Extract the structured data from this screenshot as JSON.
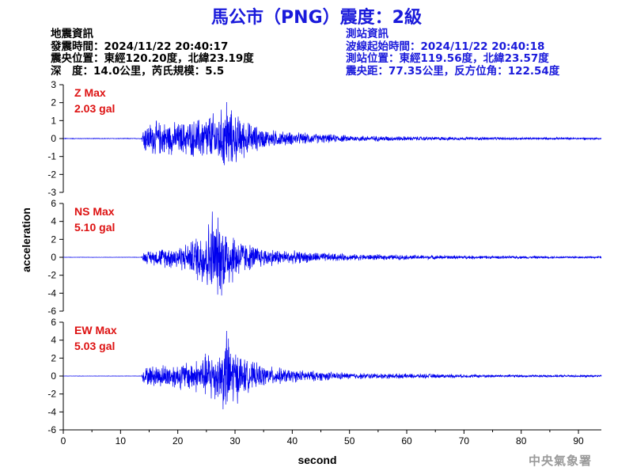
{
  "header": {
    "title": "馬公市（PNG）震度：2級"
  },
  "quake_info": {
    "heading": "地震資訊",
    "origin_time": "發震時間：2024/11/22 20:40:17",
    "epicenter": "震央位置：東經120.20度，北緯23.19度",
    "depth_magnitude": "深　度：14.0公里，芮氏規模：5.5"
  },
  "station_info": {
    "heading": "測站資訊",
    "wave_start": "波線起始時間：2024/11/22 20:40:18",
    "station_location": "測站位置：東經119.56度，北緯23.57度",
    "distance_azimuth": "震央距：77.35公里，反方位角：122.54度"
  },
  "footer": {
    "agency": "中央氣象署"
  },
  "colors": {
    "trace": "#0000ee",
    "label": "#dd1111",
    "title": "#1a1adb"
  },
  "chart_data": {
    "type": "line",
    "xlabel": "second",
    "ylabel": "acceleration",
    "xlim": [
      0,
      94
    ],
    "x_ticks": [
      0,
      10,
      20,
      30,
      40,
      50,
      60,
      70,
      80,
      90
    ],
    "panels": [
      {
        "name": "Z",
        "max_label": "Z Max",
        "max_value": "2.03 gal",
        "peak": 2.03,
        "ylim": [
          -3,
          3
        ],
        "y_ticks": [
          -3,
          -2,
          -1,
          0,
          1,
          2,
          3
        ],
        "onset_s": 13.8,
        "peak_time_s": 28.5,
        "envelope": [
          [
            0,
            0.02
          ],
          [
            13.7,
            0.02
          ],
          [
            14,
            0.9
          ],
          [
            16,
            1.1
          ],
          [
            20,
            1.0
          ],
          [
            23,
            1.2
          ],
          [
            25,
            1.5
          ],
          [
            27,
            1.7
          ],
          [
            28.5,
            2.03
          ],
          [
            30,
            1.6
          ],
          [
            32,
            1.1
          ],
          [
            35,
            0.6
          ],
          [
            40,
            0.4
          ],
          [
            50,
            0.2
          ],
          [
            60,
            0.14
          ],
          [
            70,
            0.1
          ],
          [
            80,
            0.08
          ],
          [
            94,
            0.06
          ]
        ]
      },
      {
        "name": "NS",
        "max_label": "NS Max",
        "max_value": "5.10 gal",
        "peak": 5.1,
        "ylim": [
          -6,
          6
        ],
        "y_ticks": [
          -6,
          -4,
          -2,
          0,
          2,
          4,
          6
        ],
        "onset_s": 13.8,
        "peak_time_s": 26.0,
        "envelope": [
          [
            0,
            0.02
          ],
          [
            13.7,
            0.02
          ],
          [
            14,
            0.7
          ],
          [
            18,
            1.3
          ],
          [
            22,
            1.8
          ],
          [
            24,
            3.5
          ],
          [
            26,
            5.1
          ],
          [
            28,
            4.8
          ],
          [
            30,
            3.0
          ],
          [
            32,
            1.8
          ],
          [
            35,
            1.2
          ],
          [
            40,
            0.8
          ],
          [
            50,
            0.4
          ],
          [
            60,
            0.3
          ],
          [
            70,
            0.22
          ],
          [
            80,
            0.17
          ],
          [
            94,
            0.12
          ]
        ]
      },
      {
        "name": "EW",
        "max_label": "EW Max",
        "max_value": "5.03 gal",
        "peak": 5.03,
        "ylim": [
          -6,
          6
        ],
        "y_ticks": [
          -6,
          -4,
          -2,
          0,
          2,
          4,
          6
        ],
        "onset_s": 13.8,
        "peak_time_s": 28.5,
        "envelope": [
          [
            0,
            0.02
          ],
          [
            13.7,
            0.02
          ],
          [
            14,
            1.0
          ],
          [
            16,
            1.4
          ],
          [
            20,
            1.6
          ],
          [
            24,
            2.2
          ],
          [
            26,
            3.5
          ],
          [
            27,
            3.0
          ],
          [
            28.5,
            5.03
          ],
          [
            30,
            3.5
          ],
          [
            32,
            2.0
          ],
          [
            35,
            1.3
          ],
          [
            40,
            0.8
          ],
          [
            50,
            0.4
          ],
          [
            60,
            0.3
          ],
          [
            70,
            0.22
          ],
          [
            80,
            0.17
          ],
          [
            94,
            0.12
          ]
        ]
      }
    ]
  }
}
